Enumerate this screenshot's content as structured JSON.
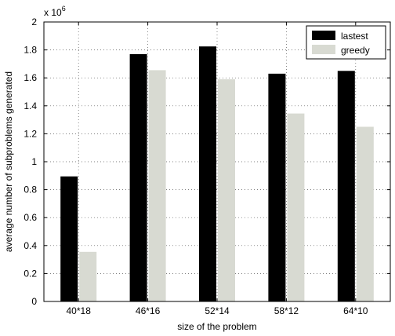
{
  "chart_data": {
    "type": "bar",
    "categories": [
      "40*18",
      "46*16",
      "52*14",
      "58*12",
      "64*10"
    ],
    "series": [
      {
        "name": "lastest",
        "values": [
          0.895,
          1.77,
          1.825,
          1.63,
          1.65
        ],
        "color": "#000000"
      },
      {
        "name": "greedy",
        "values": [
          0.355,
          1.655,
          1.59,
          1.345,
          1.25
        ],
        "color": "#d8dad2"
      }
    ],
    "title": "",
    "xlabel": "size of the problem",
    "ylabel": "average number of subproblems generated",
    "ylim": [
      0,
      2
    ],
    "yticks": [
      0,
      0.2,
      0.4,
      0.6,
      0.8,
      1,
      1.2,
      1.4,
      1.6,
      1.8,
      2
    ],
    "ytick_labels": [
      "0",
      "0.2",
      "0.4",
      "0.6",
      "0.8",
      "1",
      "1.2",
      "1.4",
      "1.6",
      "1.8",
      "2"
    ],
    "scale_base": "x 10",
    "scale_exponent": "6",
    "grid": true,
    "legend_position": "top-right"
  }
}
